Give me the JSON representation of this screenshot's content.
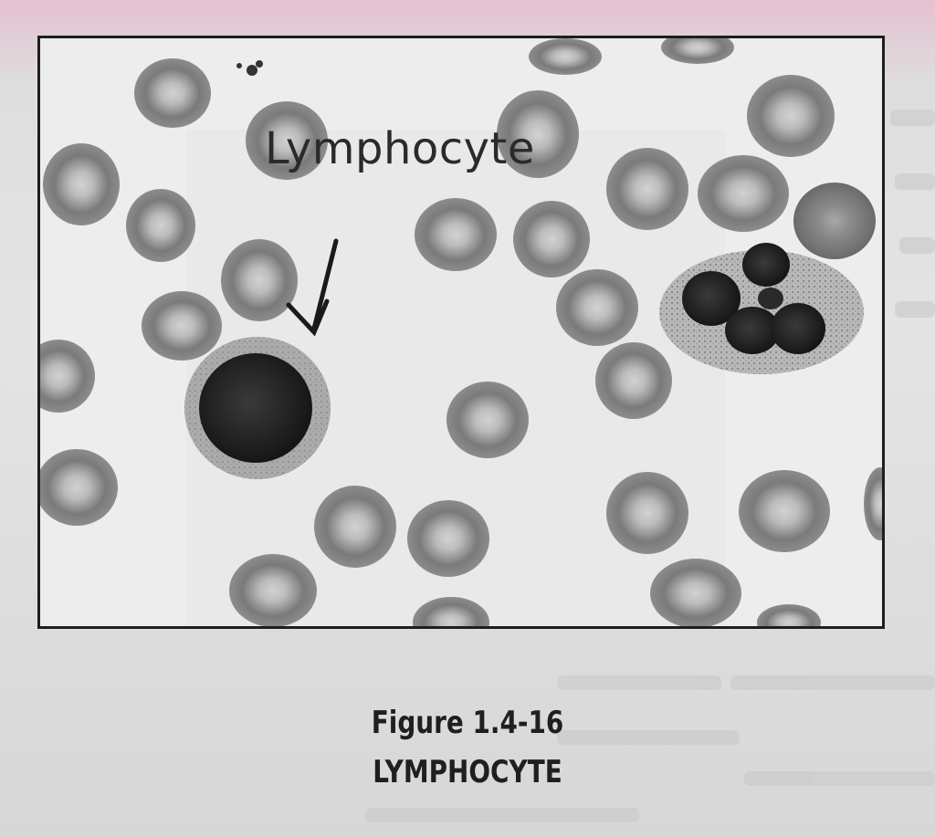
{
  "figure": {
    "label": "Lymphocyte",
    "number": "Figure 1.4-16",
    "title": "LYMPHOCYTE"
  }
}
